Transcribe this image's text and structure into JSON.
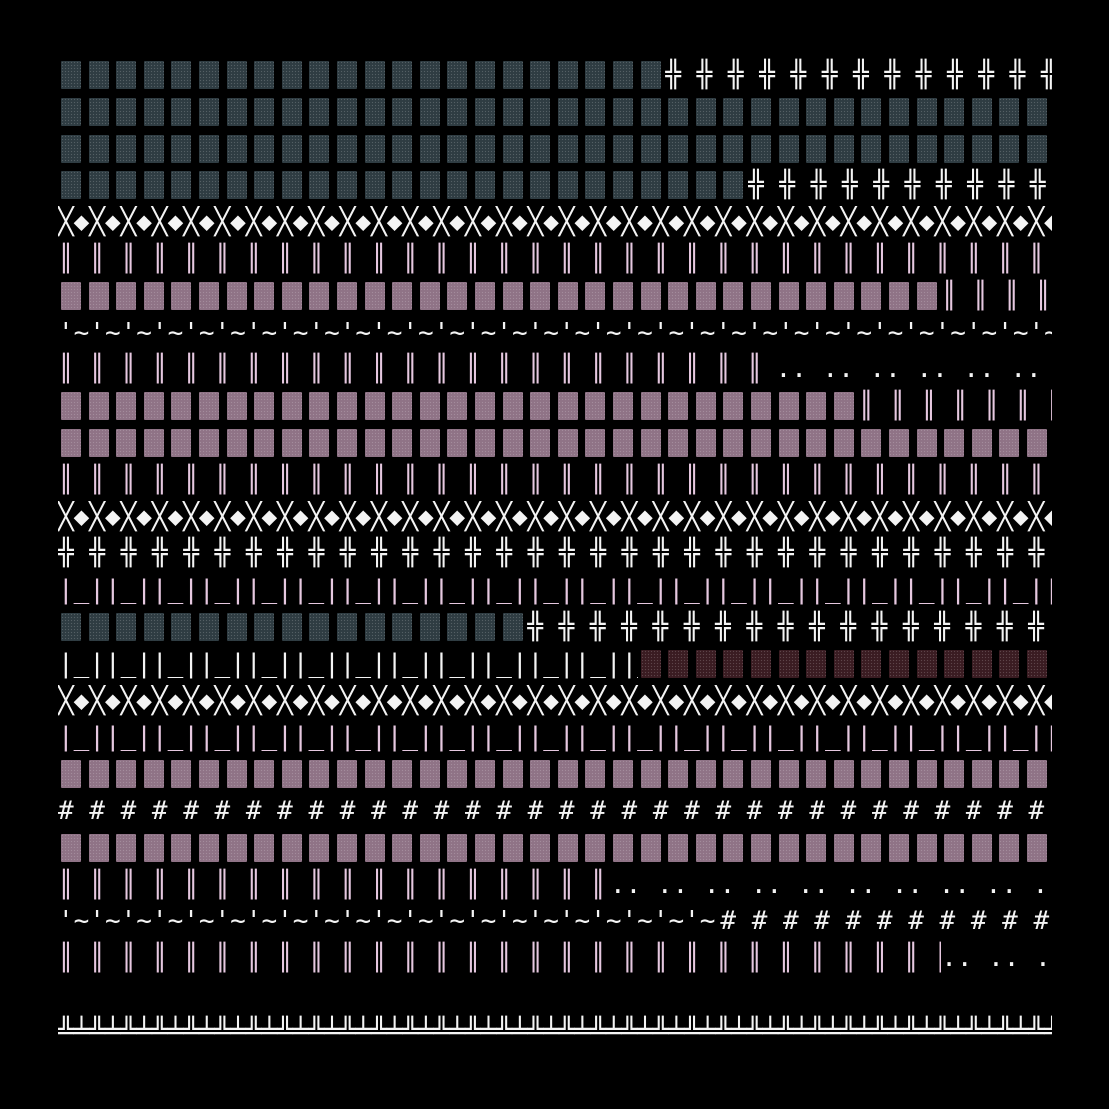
{
  "palette": {
    "background": "#000000",
    "glyph_white": "#f4f4f4",
    "glyph_pink": "#e6c8e0",
    "block_pink": "#8f7386",
    "block_teal": "#2f3c42",
    "block_maroon": "#3a1c22"
  },
  "icons": {
    "teal_block": "dotted-teal-block-icon",
    "pink_block": "dotted-pink-block-icon",
    "maroon_block": "dotted-maroon-block-icon"
  },
  "rows": [
    {
      "segments": [
        {
          "type": "block",
          "color": "block_teal",
          "cols": 22
        },
        {
          "type": "text",
          "glyph": "╬ ",
          "color": "glyph_white",
          "cols": 14
        }
      ]
    },
    {
      "segments": [
        {
          "type": "block",
          "color": "block_teal",
          "cols": 36
        }
      ]
    },
    {
      "segments": [
        {
          "type": "block",
          "color": "block_teal",
          "cols": 36
        }
      ]
    },
    {
      "segments": [
        {
          "type": "block",
          "color": "block_teal",
          "cols": 25
        },
        {
          "type": "text",
          "glyph": "╬ ",
          "color": "glyph_white",
          "cols": 11
        }
      ]
    },
    {
      "segments": [
        {
          "type": "text",
          "glyph": "╳◆",
          "color": "glyph_white",
          "cols": 36
        }
      ]
    },
    {
      "segments": [
        {
          "type": "text",
          "glyph": "║ ",
          "color": "glyph_pink",
          "cols": 36
        }
      ]
    },
    {
      "segments": [
        {
          "type": "block",
          "color": "block_pink",
          "cols": 32
        },
        {
          "type": "text",
          "glyph": "║ ",
          "color": "glyph_pink",
          "cols": 4
        }
      ]
    },
    {
      "segments": [
        {
          "type": "text",
          "glyph": "'~",
          "color": "glyph_white",
          "cols": 36
        }
      ]
    },
    {
      "segments": [
        {
          "type": "text",
          "glyph": "║ ",
          "color": "glyph_pink",
          "cols": 26
        },
        {
          "type": "text",
          "glyph": ".. ",
          "color": "glyph_white",
          "cols": 10
        }
      ]
    },
    {
      "segments": [
        {
          "type": "block",
          "color": "block_pink",
          "cols": 29
        },
        {
          "type": "text",
          "glyph": "║ ",
          "color": "glyph_pink",
          "cols": 7
        }
      ]
    },
    {
      "segments": [
        {
          "type": "block",
          "color": "block_pink",
          "cols": 36
        }
      ]
    },
    {
      "segments": [
        {
          "type": "text",
          "glyph": "║ ",
          "color": "glyph_pink",
          "cols": 36
        }
      ]
    },
    {
      "segments": [
        {
          "type": "text",
          "glyph": "╳◆",
          "color": "glyph_white",
          "cols": 36
        }
      ]
    },
    {
      "segments": [
        {
          "type": "text",
          "glyph": "╬ ",
          "color": "glyph_white",
          "cols": 36
        }
      ]
    },
    {
      "segments": [
        {
          "type": "text",
          "glyph": "|_|",
          "color": "glyph_pink",
          "cols": 36
        }
      ]
    },
    {
      "segments": [
        {
          "type": "block",
          "color": "block_teal",
          "cols": 17
        },
        {
          "type": "text",
          "glyph": "╬ ",
          "color": "glyph_white",
          "cols": 19
        }
      ]
    },
    {
      "segments": [
        {
          "type": "text",
          "glyph": "|_|",
          "color": "glyph_white",
          "cols": 21
        },
        {
          "type": "block",
          "color": "block_maroon",
          "cols": 15
        }
      ]
    },
    {
      "segments": [
        {
          "type": "text",
          "glyph": "╳◆",
          "color": "glyph_white",
          "cols": 36
        }
      ]
    },
    {
      "segments": [
        {
          "type": "text",
          "glyph": "|_|",
          "color": "glyph_pink",
          "cols": 36
        }
      ]
    },
    {
      "segments": [
        {
          "type": "block",
          "color": "block_pink",
          "cols": 36
        }
      ]
    },
    {
      "segments": [
        {
          "type": "text",
          "glyph": "# ",
          "color": "glyph_white",
          "cols": 36
        }
      ]
    },
    {
      "segments": [
        {
          "type": "block",
          "color": "block_pink",
          "cols": 36
        }
      ]
    },
    {
      "segments": [
        {
          "type": "text",
          "glyph": "║ ",
          "color": "glyph_pink",
          "cols": 20
        },
        {
          "type": "text",
          "glyph": ".. ",
          "color": "glyph_white",
          "cols": 16
        }
      ]
    },
    {
      "segments": [
        {
          "type": "text",
          "glyph": "'~",
          "color": "glyph_white",
          "cols": 24
        },
        {
          "type": "text",
          "glyph": "# ",
          "color": "glyph_white",
          "cols": 12
        }
      ]
    },
    {
      "segments": [
        {
          "type": "text",
          "glyph": "║ ",
          "color": "glyph_pink",
          "cols": 32
        },
        {
          "type": "text",
          "glyph": ".. ",
          "color": "glyph_white",
          "cols": 4
        }
      ]
    },
    {
      "segments": [
        {
          "type": "empty",
          "cols": 36
        }
      ]
    },
    {
      "segments": [
        {
          "type": "text",
          "glyph": "╩╧",
          "color": "glyph_white",
          "cols": 36
        }
      ]
    }
  ]
}
